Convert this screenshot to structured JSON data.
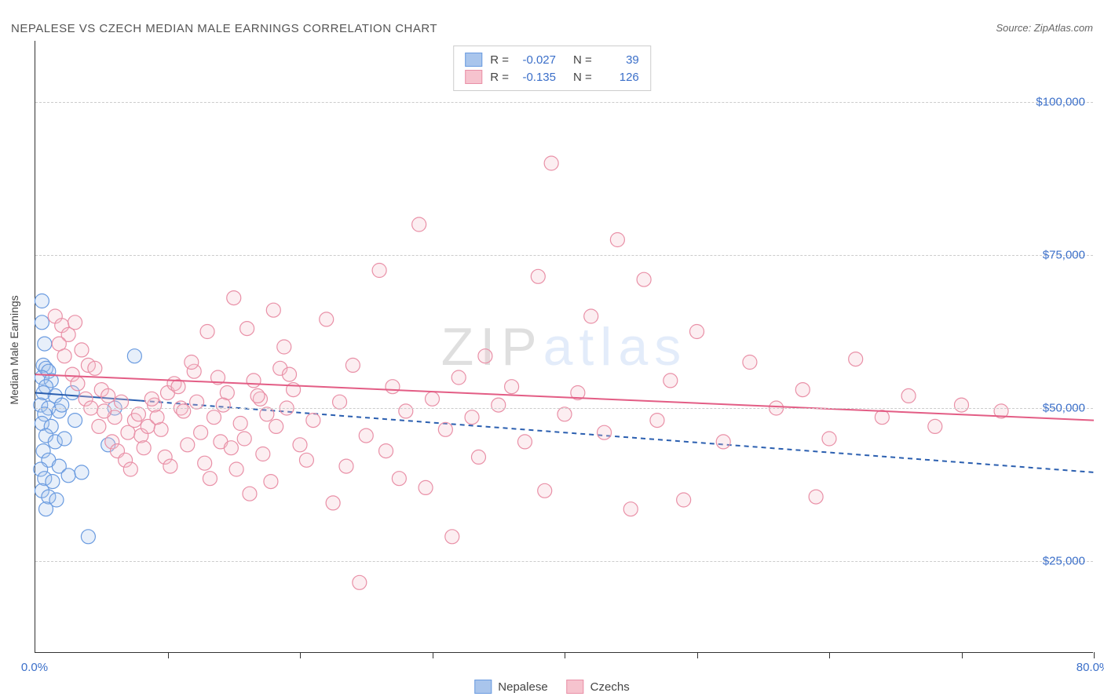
{
  "title": "NEPALESE VS CZECH MEDIAN MALE EARNINGS CORRELATION CHART",
  "source": "Source: ZipAtlas.com",
  "ylabel": "Median Male Earnings",
  "watermark_part1": "ZIP",
  "watermark_part2": "atlas",
  "chart": {
    "type": "scatter-with-regression",
    "xlim": [
      0,
      80
    ],
    "ylim": [
      10000,
      110000
    ],
    "x_tick_labels": [
      "0.0%",
      "80.0%"
    ],
    "x_tick_positions": [
      0,
      80
    ],
    "y_ticks": [
      25000,
      50000,
      75000,
      100000
    ],
    "y_tick_labels": [
      "$25,000",
      "$50,000",
      "$75,000",
      "$100,000"
    ],
    "grid_color": "#cccccc",
    "background_color": "#ffffff",
    "axis_color": "#333333",
    "tick_label_color": "#3b6fc9",
    "marker_radius": 9,
    "marker_stroke_width": 1.2,
    "marker_fill_opacity": 0.28,
    "line_width": 2,
    "series": [
      {
        "name": "Nepalese",
        "color_fill": "#a9c5ec",
        "color_stroke": "#6a9be0",
        "line_color": "#2b5fb0",
        "line_dash": "none",
        "extrapolation_dash": "6,5",
        "R": "-0.027",
        "N": "39",
        "regression": {
          "x1": 0,
          "y1": 52500,
          "x2": 8,
          "y2": 51200,
          "x2_ext": 80,
          "y2_ext": 39500
        },
        "points": [
          [
            0.5,
            67500
          ],
          [
            0.5,
            64000
          ],
          [
            0.7,
            60500
          ],
          [
            0.6,
            57000
          ],
          [
            0.8,
            56500
          ],
          [
            1.0,
            56000
          ],
          [
            0.5,
            55000
          ],
          [
            1.2,
            54500
          ],
          [
            0.8,
            53500
          ],
          [
            0.6,
            52500
          ],
          [
            1.5,
            52000
          ],
          [
            0.4,
            50500
          ],
          [
            1.0,
            50000
          ],
          [
            0.7,
            49000
          ],
          [
            1.8,
            49500
          ],
          [
            2.0,
            50500
          ],
          [
            0.5,
            47500
          ],
          [
            1.2,
            47000
          ],
          [
            0.8,
            45500
          ],
          [
            1.5,
            44500
          ],
          [
            0.6,
            43000
          ],
          [
            2.2,
            45000
          ],
          [
            1.0,
            41500
          ],
          [
            0.4,
            40000
          ],
          [
            1.8,
            40500
          ],
          [
            0.7,
            38500
          ],
          [
            1.3,
            38000
          ],
          [
            0.5,
            36500
          ],
          [
            2.5,
            39000
          ],
          [
            1.0,
            35500
          ],
          [
            1.6,
            35000
          ],
          [
            0.8,
            33500
          ],
          [
            4.0,
            29000
          ],
          [
            5.5,
            44000
          ],
          [
            7.5,
            58500
          ],
          [
            6.0,
            50000
          ],
          [
            3.0,
            48000
          ],
          [
            2.8,
            52500
          ],
          [
            3.5,
            39500
          ]
        ]
      },
      {
        "name": "Czechs",
        "color_fill": "#f6c3ce",
        "color_stroke": "#e990a7",
        "line_color": "#e35d85",
        "line_dash": "none",
        "R": "-0.135",
        "N": "126",
        "regression": {
          "x1": 0,
          "y1": 55500,
          "x2": 80,
          "y2": 48000
        },
        "points": [
          [
            1.5,
            65000
          ],
          [
            2.0,
            63500
          ],
          [
            2.5,
            62000
          ],
          [
            1.8,
            60500
          ],
          [
            3.0,
            64000
          ],
          [
            2.2,
            58500
          ],
          [
            3.5,
            59500
          ],
          [
            4.0,
            57000
          ],
          [
            2.8,
            55500
          ],
          [
            3.2,
            54000
          ],
          [
            4.5,
            56500
          ],
          [
            5.0,
            53000
          ],
          [
            3.8,
            51500
          ],
          [
            4.2,
            50000
          ],
          [
            5.5,
            52000
          ],
          [
            6.0,
            48500
          ],
          [
            4.8,
            47000
          ],
          [
            5.2,
            49500
          ],
          [
            6.5,
            51000
          ],
          [
            7.0,
            46000
          ],
          [
            5.8,
            44500
          ],
          [
            6.2,
            43000
          ],
          [
            7.5,
            48000
          ],
          [
            8.0,
            45500
          ],
          [
            6.8,
            41500
          ],
          [
            7.2,
            40000
          ],
          [
            8.5,
            47000
          ],
          [
            9.0,
            50500
          ],
          [
            7.8,
            49000
          ],
          [
            8.2,
            43500
          ],
          [
            9.5,
            46500
          ],
          [
            10.0,
            52500
          ],
          [
            8.8,
            51500
          ],
          [
            9.2,
            48500
          ],
          [
            10.5,
            54000
          ],
          [
            11.0,
            50000
          ],
          [
            9.8,
            42000
          ],
          [
            10.2,
            40500
          ],
          [
            11.5,
            44000
          ],
          [
            12.0,
            56000
          ],
          [
            10.8,
            53500
          ],
          [
            11.2,
            49500
          ],
          [
            12.5,
            46000
          ],
          [
            13.0,
            62500
          ],
          [
            11.8,
            57500
          ],
          [
            12.2,
            51000
          ],
          [
            13.5,
            48500
          ],
          [
            14.0,
            44500
          ],
          [
            12.8,
            41000
          ],
          [
            13.2,
            38500
          ],
          [
            14.5,
            52500
          ],
          [
            15.0,
            68000
          ],
          [
            13.8,
            55000
          ],
          [
            14.2,
            50500
          ],
          [
            15.5,
            47500
          ],
          [
            16.0,
            63000
          ],
          [
            14.8,
            43500
          ],
          [
            15.2,
            40000
          ],
          [
            16.5,
            54500
          ],
          [
            17.0,
            51500
          ],
          [
            15.8,
            45000
          ],
          [
            16.2,
            36000
          ],
          [
            17.5,
            49000
          ],
          [
            18.0,
            66000
          ],
          [
            16.8,
            52000
          ],
          [
            17.2,
            42500
          ],
          [
            18.5,
            56500
          ],
          [
            19.0,
            50000
          ],
          [
            17.8,
            38000
          ],
          [
            18.2,
            47000
          ],
          [
            19.5,
            53000
          ],
          [
            20.0,
            44000
          ],
          [
            18.8,
            60000
          ],
          [
            19.2,
            55500
          ],
          [
            20.5,
            41500
          ],
          [
            21.0,
            48000
          ],
          [
            22.0,
            64500
          ],
          [
            23.0,
            51000
          ],
          [
            22.5,
            34500
          ],
          [
            24.0,
            57000
          ],
          [
            25.0,
            45500
          ],
          [
            23.5,
            40500
          ],
          [
            26.0,
            72500
          ],
          [
            24.5,
            21500
          ],
          [
            27.0,
            53500
          ],
          [
            28.0,
            49500
          ],
          [
            26.5,
            43000
          ],
          [
            29.0,
            80000
          ],
          [
            27.5,
            38500
          ],
          [
            30.0,
            51500
          ],
          [
            31.0,
            46500
          ],
          [
            29.5,
            37000
          ],
          [
            32.0,
            55000
          ],
          [
            33.0,
            48500
          ],
          [
            31.5,
            29000
          ],
          [
            34.0,
            58500
          ],
          [
            35.0,
            50500
          ],
          [
            33.5,
            42000
          ],
          [
            36.0,
            53500
          ],
          [
            38.0,
            71500
          ],
          [
            37.0,
            44500
          ],
          [
            39.0,
            90000
          ],
          [
            40.0,
            49000
          ],
          [
            38.5,
            36500
          ],
          [
            42.0,
            65000
          ],
          [
            41.0,
            52500
          ],
          [
            44.0,
            77500
          ],
          [
            43.0,
            46000
          ],
          [
            46.0,
            71000
          ],
          [
            45.0,
            33500
          ],
          [
            48.0,
            54500
          ],
          [
            47.0,
            48000
          ],
          [
            50.0,
            62500
          ],
          [
            52.0,
            44500
          ],
          [
            49.0,
            35000
          ],
          [
            54.0,
            57500
          ],
          [
            56.0,
            50000
          ],
          [
            58.0,
            53000
          ],
          [
            60.0,
            45000
          ],
          [
            62.0,
            58000
          ],
          [
            59.0,
            35500
          ],
          [
            64.0,
            48500
          ],
          [
            66.0,
            52000
          ],
          [
            68.0,
            47000
          ],
          [
            70.0,
            50500
          ],
          [
            73.0,
            49500
          ]
        ]
      }
    ]
  },
  "legend_top": [
    {
      "swatch_fill": "#a9c5ec",
      "swatch_stroke": "#6a9be0",
      "R_label": "R =",
      "R": "-0.027",
      "N_label": "N =",
      "N": "39"
    },
    {
      "swatch_fill": "#f6c3ce",
      "swatch_stroke": "#e990a7",
      "R_label": "R =",
      "R": "-0.135",
      "N_label": "N =",
      "N": "126"
    }
  ],
  "legend_bottom": [
    {
      "swatch_fill": "#a9c5ec",
      "swatch_stroke": "#6a9be0",
      "label": "Nepalese"
    },
    {
      "swatch_fill": "#f6c3ce",
      "swatch_stroke": "#e990a7",
      "label": "Czechs"
    }
  ]
}
